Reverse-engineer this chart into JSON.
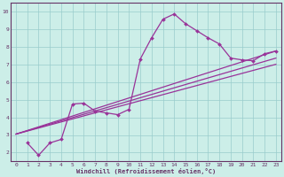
{
  "xlabel": "Windchill (Refroidissement éolien,°C)",
  "background_color": "#cceee8",
  "line_color": "#993399",
  "grid_color": "#99cccc",
  "spine_color": "#663366",
  "xlim": [
    -0.5,
    23.5
  ],
  "ylim": [
    1.5,
    10.5
  ],
  "xticks": [
    0,
    1,
    2,
    3,
    4,
    5,
    6,
    7,
    8,
    9,
    10,
    11,
    12,
    13,
    14,
    15,
    16,
    17,
    18,
    19,
    20,
    21,
    22,
    23
  ],
  "yticks": [
    2,
    3,
    4,
    5,
    6,
    7,
    8,
    9,
    10
  ],
  "line1_x": [
    1,
    2,
    3,
    4,
    5,
    6,
    7,
    8,
    9,
    10,
    11,
    12,
    13,
    14,
    15,
    16,
    17,
    18,
    19,
    20,
    21,
    22,
    23
  ],
  "line1_y": [
    2.55,
    1.85,
    2.55,
    2.75,
    4.75,
    4.8,
    4.35,
    4.25,
    4.15,
    4.45,
    7.3,
    8.5,
    9.55,
    9.85,
    9.3,
    8.9,
    8.5,
    8.15,
    7.35,
    7.25,
    7.2,
    7.6,
    7.75
  ],
  "line2_x": [
    0,
    23
  ],
  "line2_y": [
    3.05,
    7.75
  ],
  "line3_x": [
    0,
    23
  ],
  "line3_y": [
    3.05,
    7.35
  ],
  "line4_x": [
    0,
    23
  ],
  "line4_y": [
    3.05,
    7.0
  ]
}
